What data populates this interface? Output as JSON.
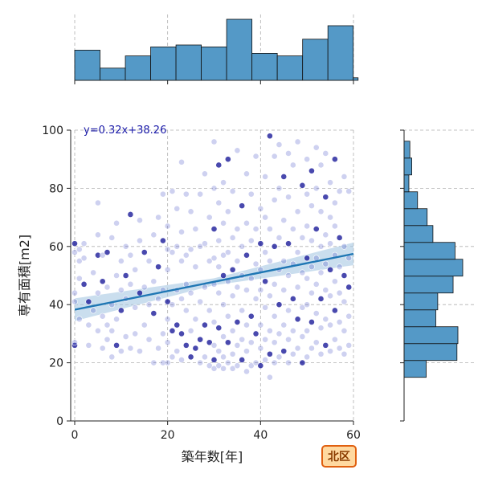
{
  "chart_data": {
    "type": "scatter",
    "title": "",
    "xlabel": "築年数[年]",
    "ylabel": "専有面積[m2]",
    "xlim": [
      -1,
      60
    ],
    "ylim": [
      0,
      100
    ],
    "xticks": [
      "0",
      "20",
      "40",
      "60"
    ],
    "yticks": [
      "0",
      "20",
      "40",
      "60",
      "80",
      "100"
    ],
    "grid": true,
    "regression": {
      "slope": 0.32,
      "intercept": 38.26,
      "label": "y=0.32x+38.26",
      "x_range": [
        0,
        60
      ]
    },
    "badge": "北区",
    "colors": {
      "point": "#5058c8",
      "point_dark": "#1c1c9a",
      "line": "#1f77b4",
      "band": "#a6c8e3",
      "hist": "#5499c7",
      "badge_fill": "#ffd9a0",
      "badge_stroke": "#e06010"
    },
    "marginal_x_hist": {
      "bin_edges": [
        0,
        5.45,
        10.9,
        16.35,
        21.8,
        27.25,
        32.7,
        38.15,
        43.6,
        49.05,
        54.5,
        59.95,
        61
      ],
      "counts": [
        47,
        19,
        38,
        52,
        55,
        52,
        95,
        42,
        38,
        64,
        85,
        4
      ]
    },
    "marginal_y_hist": {
      "bin_edges": [
        15,
        20.8,
        26.6,
        32.4,
        38.2,
        44,
        49.8,
        55.6,
        61.4,
        67.2,
        73,
        78.8,
        84.6,
        90.4,
        96.2,
        100
      ],
      "counts": [
        23,
        55,
        56,
        33,
        35,
        51,
        61,
        53,
        30,
        24,
        14,
        5,
        8,
        6,
        0
      ]
    },
    "points": [
      [
        0,
        26
      ],
      [
        0,
        27
      ],
      [
        0,
        41
      ],
      [
        0,
        44
      ],
      [
        0,
        58
      ],
      [
        0,
        61
      ],
      [
        1,
        35
      ],
      [
        1,
        49
      ],
      [
        1,
        55
      ],
      [
        1,
        59
      ],
      [
        2,
        47
      ],
      [
        2,
        56
      ],
      [
        2,
        61
      ],
      [
        3,
        26
      ],
      [
        3,
        33
      ],
      [
        3,
        41
      ],
      [
        4,
        38
      ],
      [
        4,
        51
      ],
      [
        5,
        31
      ],
      [
        5,
        44
      ],
      [
        5,
        57
      ],
      [
        5,
        64
      ],
      [
        5,
        75
      ],
      [
        6,
        25
      ],
      [
        6,
        36
      ],
      [
        6,
        48
      ],
      [
        6,
        57
      ],
      [
        7,
        28
      ],
      [
        7,
        33
      ],
      [
        7,
        46
      ],
      [
        7,
        58
      ],
      [
        8,
        22
      ],
      [
        8,
        31
      ],
      [
        8,
        40
      ],
      [
        8,
        63
      ],
      [
        9,
        26
      ],
      [
        9,
        35
      ],
      [
        9,
        50
      ],
      [
        9,
        68
      ],
      [
        10,
        24
      ],
      [
        10,
        38
      ],
      [
        10,
        45
      ],
      [
        10,
        55
      ],
      [
        11,
        29
      ],
      [
        11,
        42
      ],
      [
        11,
        50
      ],
      [
        11,
        60
      ],
      [
        12,
        25
      ],
      [
        12,
        47
      ],
      [
        12,
        57
      ],
      [
        12,
        71
      ],
      [
        13,
        30
      ],
      [
        13,
        39
      ],
      [
        13,
        52
      ],
      [
        14,
        24
      ],
      [
        14,
        44
      ],
      [
        14,
        62
      ],
      [
        14,
        69
      ],
      [
        15,
        33
      ],
      [
        15,
        46
      ],
      [
        15,
        58
      ],
      [
        16,
        28
      ],
      [
        16,
        40
      ],
      [
        16,
        55
      ],
      [
        17,
        20
      ],
      [
        17,
        37
      ],
      [
        17,
        48
      ],
      [
        17,
        64
      ],
      [
        18,
        25
      ],
      [
        18,
        42
      ],
      [
        18,
        53
      ],
      [
        18,
        70
      ],
      [
        19,
        20
      ],
      [
        19,
        30
      ],
      [
        19,
        45
      ],
      [
        19,
        62
      ],
      [
        19,
        78
      ],
      [
        20,
        20
      ],
      [
        20,
        27
      ],
      [
        20,
        35
      ],
      [
        20,
        41
      ],
      [
        20,
        52
      ],
      [
        20,
        59
      ],
      [
        20,
        67
      ],
      [
        21,
        22
      ],
      [
        21,
        31
      ],
      [
        21,
        40
      ],
      [
        21,
        58
      ],
      [
        21,
        79
      ],
      [
        22,
        24
      ],
      [
        22,
        33
      ],
      [
        22,
        45
      ],
      [
        22,
        60
      ],
      [
        22,
        73
      ],
      [
        23,
        21
      ],
      [
        23,
        30
      ],
      [
        23,
        42
      ],
      [
        23,
        55
      ],
      [
        23,
        65
      ],
      [
        23,
        89
      ],
      [
        24,
        26
      ],
      [
        24,
        38
      ],
      [
        24,
        47
      ],
      [
        24,
        57
      ],
      [
        24,
        78
      ],
      [
        25,
        22
      ],
      [
        25,
        31
      ],
      [
        25,
        44
      ],
      [
        25,
        59
      ],
      [
        25,
        72
      ],
      [
        26,
        25
      ],
      [
        26,
        35
      ],
      [
        26,
        53
      ],
      [
        26,
        66
      ],
      [
        27,
        20
      ],
      [
        27,
        28
      ],
      [
        27,
        41
      ],
      [
        27,
        60
      ],
      [
        27,
        78
      ],
      [
        28,
        22
      ],
      [
        28,
        33
      ],
      [
        28,
        46
      ],
      [
        28,
        61
      ],
      [
        28,
        85
      ],
      [
        29,
        19
      ],
      [
        29,
        27
      ],
      [
        29,
        38
      ],
      [
        29,
        55
      ],
      [
        29,
        70
      ],
      [
        30,
        18
      ],
      [
        30,
        21
      ],
      [
        30,
        26
      ],
      [
        30,
        34
      ],
      [
        30,
        47
      ],
      [
        30,
        56
      ],
      [
        30,
        66
      ],
      [
        30,
        80
      ],
      [
        30,
        96
      ],
      [
        31,
        19
      ],
      [
        31,
        24
      ],
      [
        31,
        32
      ],
      [
        31,
        44
      ],
      [
        31,
        53
      ],
      [
        31,
        62
      ],
      [
        31,
        75
      ],
      [
        31,
        88
      ],
      [
        32,
        18
      ],
      [
        32,
        22
      ],
      [
        32,
        29
      ],
      [
        32,
        40
      ],
      [
        32,
        50
      ],
      [
        32,
        57
      ],
      [
        32,
        68
      ],
      [
        32,
        82
      ],
      [
        33,
        20
      ],
      [
        33,
        27
      ],
      [
        33,
        36
      ],
      [
        33,
        48
      ],
      [
        33,
        58
      ],
      [
        33,
        72
      ],
      [
        33,
        90
      ],
      [
        34,
        18
      ],
      [
        34,
        23
      ],
      [
        34,
        31
      ],
      [
        34,
        43
      ],
      [
        34,
        52
      ],
      [
        34,
        63
      ],
      [
        34,
        79
      ],
      [
        35,
        19
      ],
      [
        35,
        26
      ],
      [
        35,
        34
      ],
      [
        35,
        46
      ],
      [
        35,
        55
      ],
      [
        35,
        66
      ],
      [
        35,
        93
      ],
      [
        36,
        21
      ],
      [
        36,
        28
      ],
      [
        36,
        38
      ],
      [
        36,
        50
      ],
      [
        36,
        60
      ],
      [
        36,
        74
      ],
      [
        37,
        17
      ],
      [
        37,
        24
      ],
      [
        37,
        33
      ],
      [
        37,
        45
      ],
      [
        37,
        57
      ],
      [
        37,
        68
      ],
      [
        37,
        85
      ],
      [
        38,
        19
      ],
      [
        38,
        27
      ],
      [
        38,
        36
      ],
      [
        38,
        49
      ],
      [
        38,
        62
      ],
      [
        38,
        78
      ],
      [
        39,
        20
      ],
      [
        39,
        30
      ],
      [
        39,
        42
      ],
      [
        39,
        54
      ],
      [
        39,
        66
      ],
      [
        39,
        91
      ],
      [
        40,
        19
      ],
      [
        40,
        25
      ],
      [
        40,
        33
      ],
      [
        40,
        45
      ],
      [
        40,
        52
      ],
      [
        40,
        61
      ],
      [
        40,
        73
      ],
      [
        41,
        21
      ],
      [
        41,
        28
      ],
      [
        41,
        39
      ],
      [
        41,
        48
      ],
      [
        41,
        58
      ],
      [
        41,
        70
      ],
      [
        41,
        84
      ],
      [
        42,
        15
      ],
      [
        42,
        23
      ],
      [
        42,
        31
      ],
      [
        42,
        43
      ],
      [
        42,
        55
      ],
      [
        42,
        66
      ],
      [
        42,
        98
      ],
      [
        43,
        20
      ],
      [
        43,
        27
      ],
      [
        43,
        36
      ],
      [
        43,
        47
      ],
      [
        43,
        60
      ],
      [
        43,
        76
      ],
      [
        43,
        91
      ],
      [
        44,
        22
      ],
      [
        44,
        30
      ],
      [
        44,
        40
      ],
      [
        44,
        52
      ],
      [
        44,
        63
      ],
      [
        44,
        80
      ],
      [
        44,
        95
      ],
      [
        45,
        24
      ],
      [
        45,
        33
      ],
      [
        45,
        45
      ],
      [
        45,
        55
      ],
      [
        45,
        69
      ],
      [
        45,
        84
      ],
      [
        46,
        20
      ],
      [
        46,
        28
      ],
      [
        46,
        38
      ],
      [
        46,
        50
      ],
      [
        46,
        61
      ],
      [
        46,
        77
      ],
      [
        46,
        92
      ],
      [
        47,
        23
      ],
      [
        47,
        31
      ],
      [
        47,
        42
      ],
      [
        47,
        54
      ],
      [
        47,
        66
      ],
      [
        47,
        88
      ],
      [
        48,
        25
      ],
      [
        48,
        35
      ],
      [
        48,
        46
      ],
      [
        48,
        58
      ],
      [
        48,
        72
      ],
      [
        48,
        96
      ],
      [
        49,
        20
      ],
      [
        49,
        29
      ],
      [
        49,
        39
      ],
      [
        49,
        51
      ],
      [
        49,
        63
      ],
      [
        49,
        81
      ],
      [
        50,
        22
      ],
      [
        50,
        31
      ],
      [
        50,
        40
      ],
      [
        50,
        49
      ],
      [
        50,
        56
      ],
      [
        50,
        67
      ],
      [
        50,
        78
      ],
      [
        50,
        90
      ],
      [
        51,
        25
      ],
      [
        51,
        34
      ],
      [
        51,
        44
      ],
      [
        51,
        53
      ],
      [
        51,
        62
      ],
      [
        51,
        74
      ],
      [
        51,
        86
      ],
      [
        52,
        27
      ],
      [
        52,
        37
      ],
      [
        52,
        47
      ],
      [
        52,
        56
      ],
      [
        52,
        66
      ],
      [
        52,
        80
      ],
      [
        52,
        94
      ],
      [
        53,
        23
      ],
      [
        53,
        32
      ],
      [
        53,
        42
      ],
      [
        53,
        51
      ],
      [
        53,
        60
      ],
      [
        53,
        72
      ],
      [
        53,
        88
      ],
      [
        54,
        26
      ],
      [
        54,
        35
      ],
      [
        54,
        45
      ],
      [
        54,
        54
      ],
      [
        54,
        64
      ],
      [
        54,
        77
      ],
      [
        54,
        92
      ],
      [
        55,
        24
      ],
      [
        55,
        33
      ],
      [
        55,
        43
      ],
      [
        55,
        52
      ],
      [
        55,
        61
      ],
      [
        55,
        70
      ],
      [
        55,
        82
      ],
      [
        56,
        28
      ],
      [
        56,
        38
      ],
      [
        56,
        48
      ],
      [
        56,
        57
      ],
      [
        56,
        67
      ],
      [
        56,
        75
      ],
      [
        56,
        90
      ],
      [
        57,
        25
      ],
      [
        57,
        34
      ],
      [
        57,
        44
      ],
      [
        57,
        53
      ],
      [
        57,
        63
      ],
      [
        57,
        79
      ],
      [
        58,
        23
      ],
      [
        58,
        31
      ],
      [
        58,
        41
      ],
      [
        58,
        50
      ],
      [
        58,
        60
      ],
      [
        58,
        84
      ],
      [
        59,
        26
      ],
      [
        59,
        36
      ],
      [
        59,
        46
      ],
      [
        59,
        56
      ],
      [
        59,
        79
      ]
    ]
  }
}
